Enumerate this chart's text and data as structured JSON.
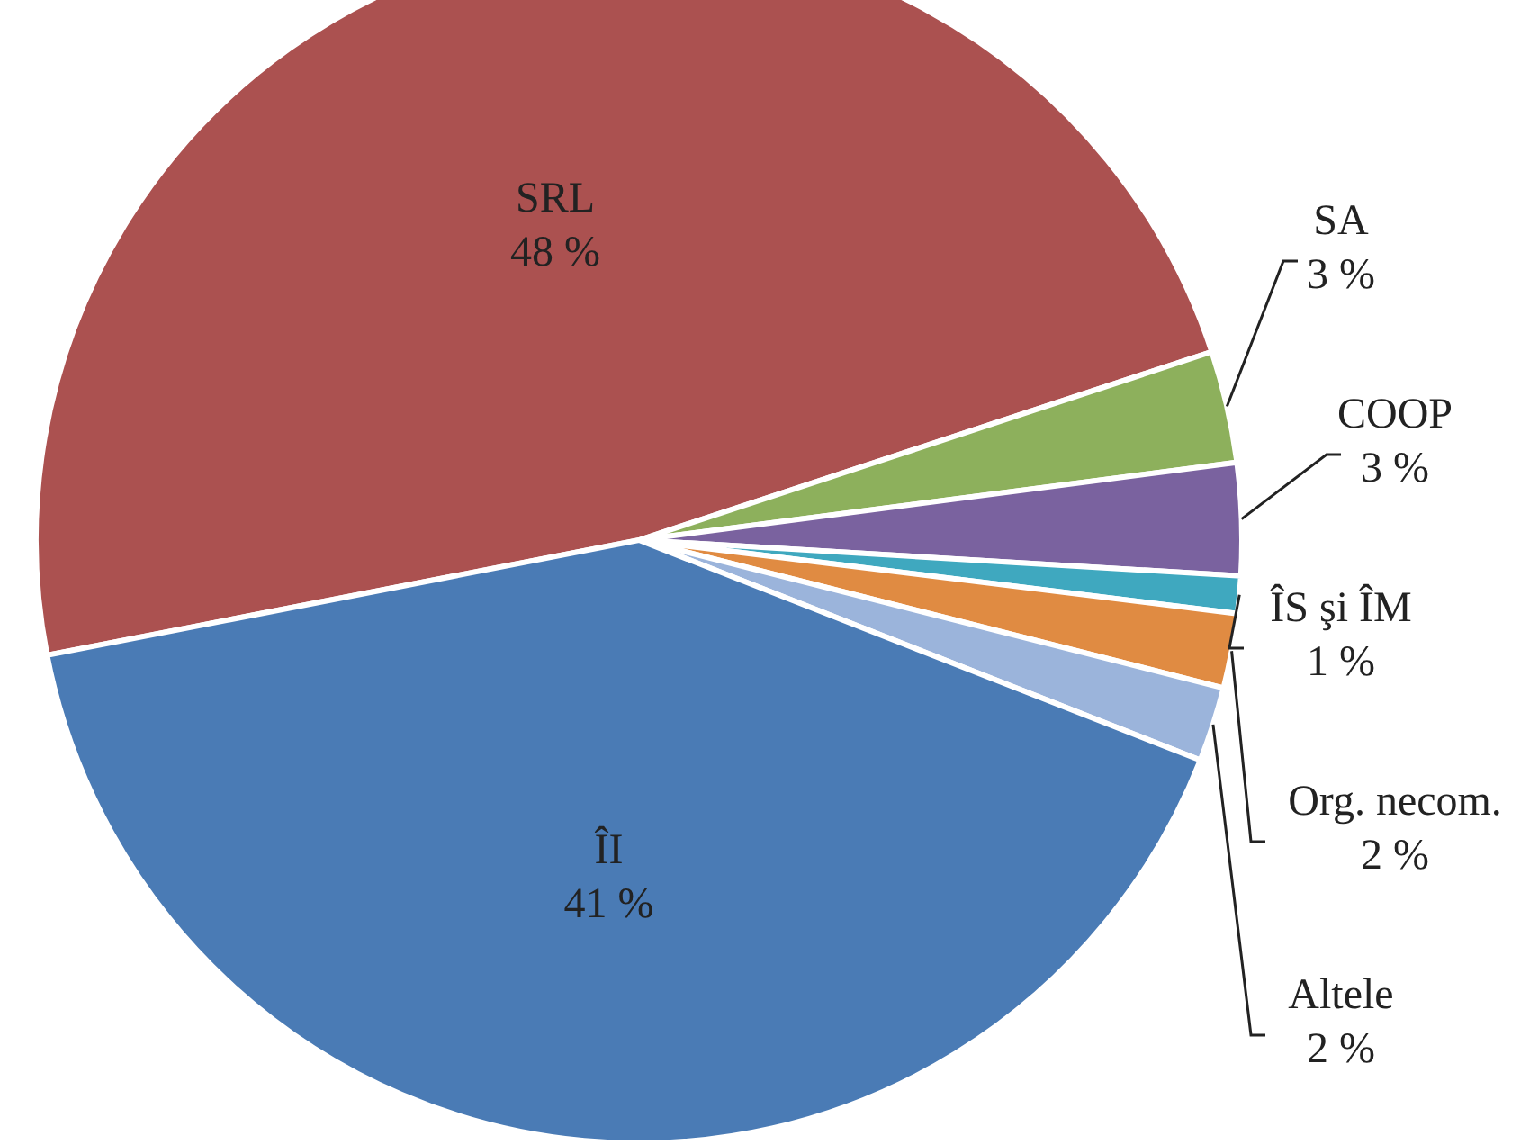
{
  "chart_data": {
    "type": "pie",
    "categories": [
      "SRL",
      "SA",
      "COOP",
      "ÎS şi ÎM",
      "Org. necom.",
      "Altele",
      "ÎI"
    ],
    "values": [
      48,
      3,
      3,
      1,
      2,
      2,
      41
    ],
    "value_labels": [
      "48 %",
      "3 %",
      "3 %",
      "1 %",
      "2 %",
      "2 %",
      "41 %"
    ],
    "colors": [
      "#ab5150",
      "#8db05c",
      "#7a629f",
      "#3fa8bf",
      "#e08b42",
      "#9bb4db",
      "#4a7bb5"
    ]
  }
}
